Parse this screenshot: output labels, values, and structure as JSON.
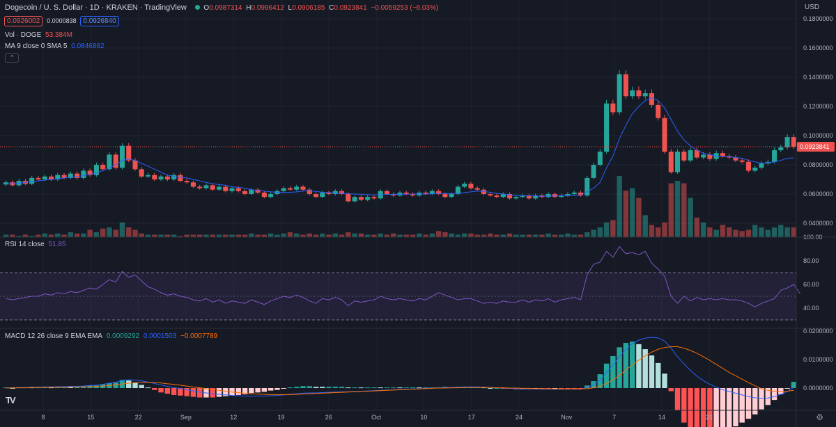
{
  "header": {
    "title": "Dogecoin / U. S. Dollar · 1D · KRAKEN · TradingView",
    "o_label": "O",
    "o": "0.0987314",
    "h_label": "H",
    "h": "0.0996412",
    "l_label": "L",
    "l": "0.0906185",
    "c_label": "C",
    "c": "0.0923841",
    "change": "−0.0059253 (−6.03%)",
    "sell_price": "0.0926002",
    "spread": "0.0000838",
    "buy_price": "0.0926840",
    "vol_label": "Vol · DOGE",
    "vol_value": "53.384M",
    "ma_label": "MA 9 close 0 SMA 5",
    "ma_value": "0.0846862",
    "rsi_label": "RSI 14 close",
    "rsi_value": "51.85",
    "macd_label": "MACD 12 26 close 9 EMA EMA",
    "macd_hist": "0.0009292",
    "macd_line": "0.0001503",
    "macd_signal": "−0.0007789",
    "currency": "USD"
  },
  "colors": {
    "up": "#26a69a",
    "down": "#ef5350",
    "ma": "#2962ff",
    "rsi": "#7e57c2",
    "macd_line": "#2962ff",
    "signal": "#ff6d00",
    "bg": "#161a25"
  },
  "chart_data": {
    "type": "candlestick",
    "price_axis": {
      "min": 0.03,
      "max": 0.19,
      "ticks": [
        "0.0400000",
        "0.0600000",
        "0.0800000",
        "0.1000000",
        "0.1200000",
        "0.1400000",
        "0.1600000",
        "0.1800000"
      ],
      "current_label": "0.0923841"
    },
    "rsi_axis": {
      "ticks": [
        "40.00",
        "60.00",
        "80.00",
        "100.00"
      ],
      "bands": [
        30,
        50,
        70
      ]
    },
    "macd_axis": {
      "ticks": [
        "0.0000000",
        "0.0100000",
        "0.0200000"
      ]
    },
    "x_labels": [
      "8",
      "15",
      "22",
      "Sep",
      "12",
      "19",
      "26",
      "Oct",
      "10",
      "17",
      "24",
      "Nov",
      "7",
      "14",
      "21"
    ],
    "candles": [
      [
        0.0665,
        0.068
      ],
      [
        0.068,
        0.066
      ],
      [
        0.066,
        0.069
      ],
      [
        0.069,
        0.067
      ],
      [
        0.067,
        0.071
      ],
      [
        0.071,
        0.07
      ],
      [
        0.07,
        0.072
      ],
      [
        0.072,
        0.07
      ],
      [
        0.07,
        0.073
      ],
      [
        0.073,
        0.071
      ],
      [
        0.071,
        0.074
      ],
      [
        0.074,
        0.071
      ],
      [
        0.071,
        0.076
      ],
      [
        0.076,
        0.073
      ],
      [
        0.073,
        0.08
      ],
      [
        0.08,
        0.077
      ],
      [
        0.077,
        0.087
      ],
      [
        0.087,
        0.078
      ],
      [
        0.078,
        0.093
      ],
      [
        0.093,
        0.083
      ],
      [
        0.083,
        0.077
      ],
      [
        0.077,
        0.072
      ],
      [
        0.072,
        0.073
      ],
      [
        0.073,
        0.07
      ],
      [
        0.07,
        0.072
      ],
      [
        0.072,
        0.07
      ],
      [
        0.07,
        0.073
      ],
      [
        0.073,
        0.069
      ],
      [
        0.069,
        0.068
      ],
      [
        0.068,
        0.065
      ],
      [
        0.065,
        0.064
      ],
      [
        0.064,
        0.066
      ],
      [
        0.066,
        0.063
      ],
      [
        0.063,
        0.065
      ],
      [
        0.065,
        0.062
      ],
      [
        0.062,
        0.064
      ],
      [
        0.064,
        0.062
      ],
      [
        0.062,
        0.06
      ],
      [
        0.06,
        0.063
      ],
      [
        0.063,
        0.061
      ],
      [
        0.061,
        0.058
      ],
      [
        0.058,
        0.06
      ],
      [
        0.06,
        0.062
      ],
      [
        0.062,
        0.064
      ],
      [
        0.064,
        0.063
      ],
      [
        0.063,
        0.065
      ],
      [
        0.065,
        0.063
      ],
      [
        0.063,
        0.06
      ],
      [
        0.06,
        0.058
      ],
      [
        0.058,
        0.061
      ],
      [
        0.061,
        0.06
      ],
      [
        0.06,
        0.062
      ],
      [
        0.062,
        0.06
      ],
      [
        0.06,
        0.055
      ],
      [
        0.055,
        0.058
      ],
      [
        0.058,
        0.056
      ],
      [
        0.056,
        0.058
      ],
      [
        0.058,
        0.057
      ],
      [
        0.057,
        0.062
      ],
      [
        0.062,
        0.06
      ],
      [
        0.06,
        0.059
      ],
      [
        0.059,
        0.061
      ],
      [
        0.061,
        0.06
      ],
      [
        0.06,
        0.059
      ],
      [
        0.059,
        0.061
      ],
      [
        0.061,
        0.06
      ],
      [
        0.06,
        0.062
      ],
      [
        0.062,
        0.06
      ],
      [
        0.06,
        0.058
      ],
      [
        0.058,
        0.06
      ],
      [
        0.06,
        0.065
      ],
      [
        0.065,
        0.067
      ],
      [
        0.067,
        0.064
      ],
      [
        0.064,
        0.063
      ],
      [
        0.063,
        0.06
      ],
      [
        0.06,
        0.059
      ],
      [
        0.059,
        0.058
      ],
      [
        0.058,
        0.06
      ],
      [
        0.06,
        0.057
      ],
      [
        0.057,
        0.058
      ],
      [
        0.058,
        0.059
      ],
      [
        0.059,
        0.057
      ],
      [
        0.057,
        0.059
      ],
      [
        0.059,
        0.058
      ],
      [
        0.058,
        0.06
      ],
      [
        0.06,
        0.058
      ],
      [
        0.058,
        0.059
      ],
      [
        0.059,
        0.06
      ],
      [
        0.06,
        0.061
      ],
      [
        0.061,
        0.059
      ],
      [
        0.059,
        0.071
      ],
      [
        0.071,
        0.08
      ],
      [
        0.08,
        0.089
      ],
      [
        0.089,
        0.122
      ],
      [
        0.122,
        0.116
      ],
      [
        0.116,
        0.142
      ],
      [
        0.142,
        0.127
      ],
      [
        0.127,
        0.131
      ],
      [
        0.131,
        0.127
      ],
      [
        0.127,
        0.129
      ],
      [
        0.129,
        0.121
      ],
      [
        0.121,
        0.112
      ],
      [
        0.112,
        0.089
      ],
      [
        0.089,
        0.075
      ],
      [
        0.075,
        0.089
      ],
      [
        0.089,
        0.083
      ],
      [
        0.083,
        0.09
      ],
      [
        0.09,
        0.085
      ],
      [
        0.085,
        0.087
      ],
      [
        0.087,
        0.084
      ],
      [
        0.084,
        0.088
      ],
      [
        0.088,
        0.086
      ],
      [
        0.086,
        0.085
      ],
      [
        0.085,
        0.083
      ],
      [
        0.083,
        0.082
      ],
      [
        0.082,
        0.076
      ],
      [
        0.076,
        0.078
      ],
      [
        0.078,
        0.081
      ],
      [
        0.081,
        0.082
      ],
      [
        0.082,
        0.09
      ],
      [
        0.09,
        0.092
      ],
      [
        0.092,
        0.099
      ],
      [
        0.099,
        0.0924
      ]
    ],
    "volume": [
      2,
      2,
      1,
      2,
      1,
      2,
      3,
      2,
      3,
      2,
      4,
      3,
      3,
      6,
      4,
      7,
      8,
      6,
      12,
      8,
      6,
      3,
      2,
      2,
      2,
      2,
      2,
      1,
      2,
      2,
      2,
      2,
      2,
      2,
      2,
      2,
      2,
      2,
      3,
      2,
      2,
      3,
      2,
      3,
      4,
      3,
      2,
      3,
      2,
      3,
      2,
      3,
      2,
      4,
      3,
      3,
      2,
      2,
      3,
      2,
      3,
      2,
      2,
      2,
      3,
      2,
      3,
      5,
      4,
      3,
      2,
      3,
      3,
      2,
      2,
      3,
      2,
      2,
      3,
      2,
      2,
      2,
      2,
      2,
      3,
      2,
      2,
      3,
      2,
      2,
      4,
      6,
      8,
      12,
      14,
      50,
      38,
      40,
      32,
      18,
      10,
      8,
      12,
      44,
      46,
      44,
      32,
      16,
      12,
      8,
      6,
      10,
      8,
      6,
      5,
      6,
      10,
      8,
      6,
      8,
      10,
      8,
      8
    ],
    "ma": [
      0.067,
      0.067,
      0.0675,
      0.068,
      0.0685,
      0.069,
      0.0695,
      0.07,
      0.0705,
      0.071,
      0.0715,
      0.072,
      0.0725,
      0.0735,
      0.0745,
      0.076,
      0.078,
      0.08,
      0.083,
      0.084,
      0.083,
      0.081,
      0.079,
      0.077,
      0.075,
      0.073,
      0.072,
      0.0715,
      0.071,
      0.07,
      0.069,
      0.068,
      0.067,
      0.0665,
      0.066,
      0.065,
      0.0645,
      0.064,
      0.063,
      0.0625,
      0.062,
      0.0615,
      0.0612,
      0.061,
      0.0612,
      0.0615,
      0.062,
      0.0622,
      0.0618,
      0.0612,
      0.061,
      0.0608,
      0.0605,
      0.0602,
      0.06,
      0.0598,
      0.0596,
      0.0594,
      0.0595,
      0.0597,
      0.0598,
      0.0598,
      0.0599,
      0.06,
      0.06,
      0.06,
      0.0602,
      0.0604,
      0.0604,
      0.0603,
      0.0605,
      0.061,
      0.0615,
      0.062,
      0.0618,
      0.0612,
      0.0605,
      0.06,
      0.0595,
      0.059,
      0.0588,
      0.0588,
      0.0587,
      0.0586,
      0.0586,
      0.0587,
      0.0588,
      0.0589,
      0.059,
      0.0592,
      0.0615,
      0.064,
      0.068,
      0.078,
      0.086,
      0.098,
      0.107,
      0.115,
      0.12,
      0.124,
      0.126,
      0.124,
      0.119,
      0.111,
      0.103,
      0.097,
      0.093,
      0.09,
      0.088,
      0.087,
      0.086,
      0.0858,
      0.0855,
      0.085,
      0.0845,
      0.083,
      0.082,
      0.081,
      0.0815,
      0.082,
      0.083,
      0.0845,
      0.0847
    ],
    "rsi": [
      48,
      47,
      48,
      49,
      50,
      50,
      52,
      51,
      53,
      52,
      54,
      53,
      55,
      57,
      56,
      60,
      64,
      62,
      71,
      66,
      68,
      63,
      58,
      56,
      53,
      51,
      52,
      50,
      49,
      47,
      46,
      48,
      45,
      47,
      44,
      46,
      45,
      44,
      47,
      45,
      43,
      46,
      48,
      50,
      49,
      51,
      49,
      46,
      44,
      48,
      47,
      49,
      47,
      42,
      46,
      45,
      46,
      47,
      50,
      48,
      47,
      48,
      47,
      46,
      48,
      47,
      50,
      53,
      51,
      49,
      47,
      48,
      48,
      46,
      44,
      45,
      44,
      46,
      45,
      45,
      47,
      45,
      47,
      46,
      48,
      45,
      47,
      48,
      49,
      47,
      68,
      77,
      79,
      88,
      83,
      92,
      86,
      87,
      85,
      88,
      78,
      73,
      67,
      50,
      44,
      50,
      46,
      49,
      47,
      48,
      47,
      48,
      47,
      47,
      46,
      44,
      41,
      44,
      46,
      48,
      55,
      57,
      60,
      52
    ],
    "macd_line": [
      0.0001,
      0.0001,
      0.0002,
      0.0002,
      0.0003,
      0.0003,
      0.0004,
      0.0004,
      0.0005,
      0.0005,
      0.0006,
      0.0006,
      0.0007,
      0.0009,
      0.001,
      0.0013,
      0.0017,
      0.002,
      0.0027,
      0.0029,
      0.0028,
      0.0025,
      0.0021,
      0.0016,
      0.0011,
      0.0006,
      0.0002,
      -0.0002,
      -0.0006,
      -0.001,
      -0.0014,
      -0.0017,
      -0.002,
      -0.0022,
      -0.0024,
      -0.0026,
      -0.0027,
      -0.0028,
      -0.0028,
      -0.0028,
      -0.0028,
      -0.0027,
      -0.0026,
      -0.0024,
      -0.0022,
      -0.002,
      -0.0018,
      -0.0017,
      -0.0017,
      -0.0016,
      -0.0015,
      -0.0014,
      -0.0013,
      -0.0013,
      -0.0012,
      -0.0011,
      -0.001,
      -0.0009,
      -0.0008,
      -0.0007,
      -0.0006,
      -0.0005,
      -0.0004,
      -0.0003,
      -0.0002,
      -0.0001,
      0.0,
      0.0001,
      0.0002,
      0.0002,
      0.0003,
      0.0004,
      0.0004,
      0.0004,
      0.0003,
      0.0002,
      0.0001,
      0.0,
      -0.0001,
      -0.0002,
      -0.0003,
      -0.0003,
      -0.0003,
      -0.0004,
      -0.0004,
      -0.0004,
      -0.0004,
      -0.0004,
      -0.0004,
      -0.0004,
      0.0002,
      0.0012,
      0.0028,
      0.0055,
      0.008,
      0.011,
      0.0135,
      0.0155,
      0.0168,
      0.0175,
      0.0178,
      0.0176,
      0.0165,
      0.014,
      0.011,
      0.0085,
      0.0062,
      0.0042,
      0.0026,
      0.0013,
      0.0003,
      -0.0006,
      -0.0012,
      -0.0018,
      -0.0024,
      -0.003,
      -0.0034,
      -0.0036,
      -0.0035,
      -0.003,
      -0.0022,
      -0.0012,
      0.0002
    ],
    "macd_signal": [
      0.0,
      0.0001,
      0.0001,
      0.0001,
      0.0002,
      0.0002,
      0.0002,
      0.0003,
      0.0003,
      0.0003,
      0.0004,
      0.0004,
      0.0005,
      0.0005,
      0.0006,
      0.0007,
      0.0009,
      0.0011,
      0.0014,
      0.0017,
      0.0019,
      0.002,
      0.002,
      0.0019,
      0.0018,
      0.0015,
      0.0013,
      0.001,
      0.0007,
      0.0004,
      0.0001,
      -0.0002,
      -0.0005,
      -0.0008,
      -0.0011,
      -0.0014,
      -0.0016,
      -0.0018,
      -0.002,
      -0.0021,
      -0.0022,
      -0.0023,
      -0.0023,
      -0.0023,
      -0.0023,
      -0.0022,
      -0.0021,
      -0.002,
      -0.0019,
      -0.0018,
      -0.0017,
      -0.0016,
      -0.0015,
      -0.0014,
      -0.0013,
      -0.0012,
      -0.0011,
      -0.001,
      -0.0009,
      -0.0008,
      -0.0007,
      -0.0006,
      -0.0005,
      -0.0004,
      -0.0003,
      -0.0002,
      -0.0001,
      0.0,
      0.0,
      0.0001,
      0.0001,
      0.0002,
      0.0002,
      0.0002,
      0.0002,
      0.0002,
      0.0001,
      0.0001,
      0.0,
      0.0,
      -0.0001,
      -0.0001,
      -0.0002,
      -0.0002,
      -0.0002,
      -0.0003,
      -0.0003,
      -0.0003,
      -0.0003,
      -0.0003,
      -0.0002,
      0.0001,
      0.0006,
      0.0016,
      0.0029,
      0.0045,
      0.0063,
      0.0081,
      0.0098,
      0.0113,
      0.0126,
      0.0136,
      0.0142,
      0.0145,
      0.0145,
      0.014,
      0.0132,
      0.0122,
      0.011,
      0.0097,
      0.0083,
      0.0069,
      0.0055,
      0.0043,
      0.0031,
      0.0019,
      0.0008,
      -0.0002,
      -0.0008,
      -0.0011,
      -0.0012,
      -0.0011,
      -0.0008
    ]
  }
}
